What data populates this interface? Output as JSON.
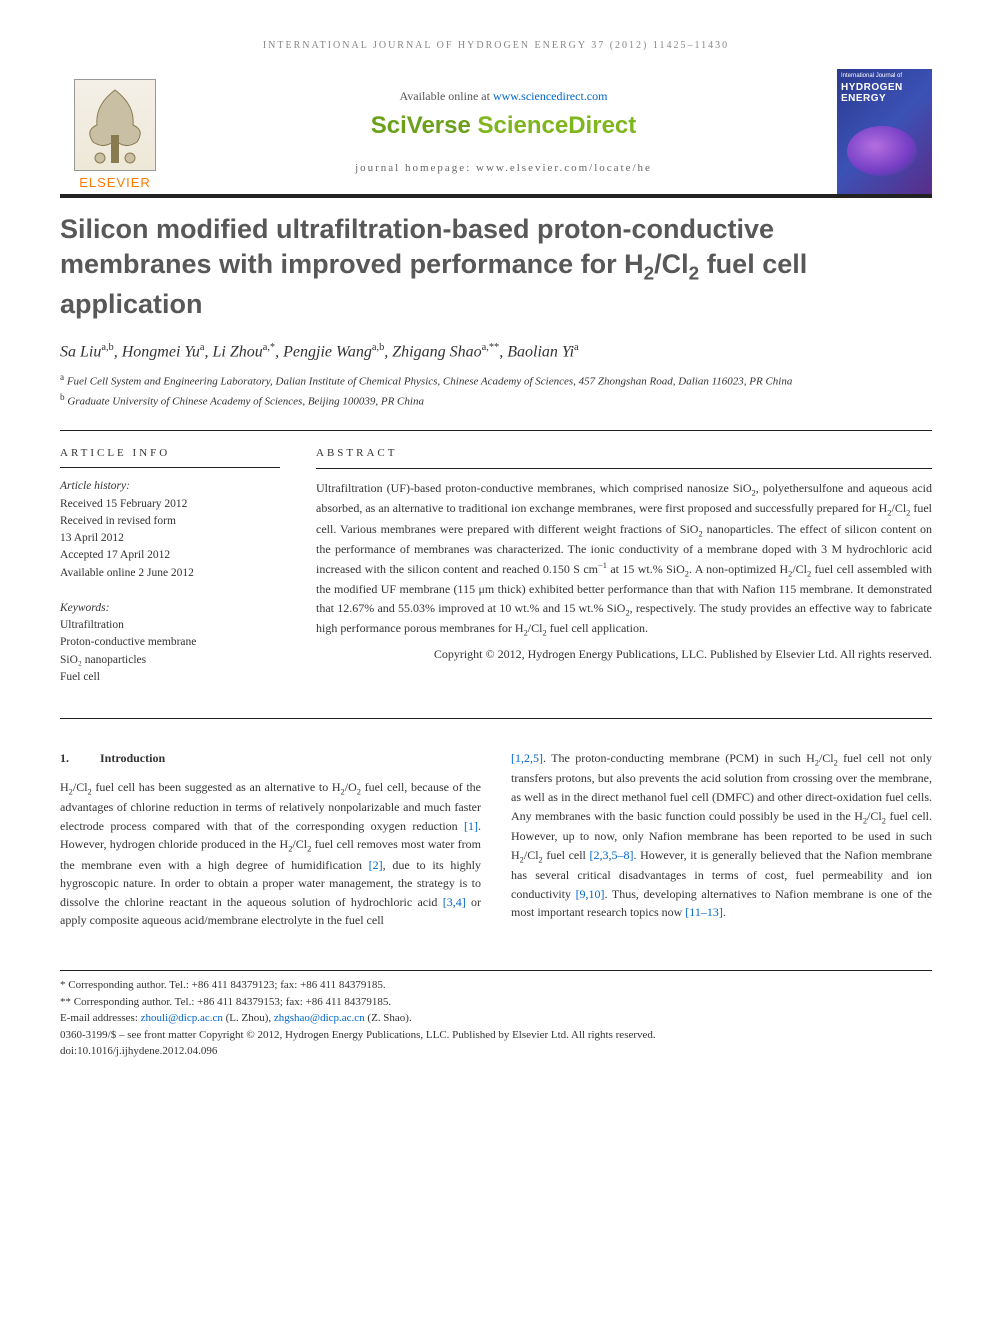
{
  "running_head": "INTERNATIONAL JOURNAL OF HYDROGEN ENERGY 37 (2012) 11425–11430",
  "header": {
    "available_prefix": "Available online at ",
    "available_link": "www.sciencedirect.com",
    "sciverse": "SciVerse ScienceDirect",
    "homepage": "journal homepage: www.elsevier.com/locate/he",
    "elsevier": "ELSEVIER",
    "cover_top": "International Journal of",
    "cover_main": "HYDROGEN ENERGY"
  },
  "title_html": "Silicon modified ultrafiltration-based proton-conductive membranes with improved performance for H<sub>2</sub>/Cl<sub>2</sub> fuel cell application",
  "authors_html": "Sa Liu<sup>a,b</sup>, Hongmei Yu<sup>a</sup>, Li Zhou<sup>a,*</sup>, Pengjie Wang<sup>a,b</sup>, Zhigang Shao<sup>a,**</sup>, Baolian Yi<sup>a</sup>",
  "affiliations": {
    "a": "Fuel Cell System and Engineering Laboratory, Dalian Institute of Chemical Physics, Chinese Academy of Sciences, 457 Zhongshan Road, Dalian 116023, PR China",
    "b": "Graduate University of Chinese Academy of Sciences, Beijing 100039, PR China"
  },
  "info": {
    "head": "ARTICLE INFO",
    "history_label": "Article history:",
    "history_lines": [
      "Received 15 February 2012",
      "Received in revised form",
      "13 April 2012",
      "Accepted 17 April 2012",
      "Available online 2 June 2012"
    ],
    "keywords_label": "Keywords:",
    "keywords": [
      "Ultrafiltration",
      "Proton-conductive membrane",
      "SiO₂ nanoparticles",
      "Fuel cell"
    ]
  },
  "abstract": {
    "head": "ABSTRACT",
    "text_html": "Ultrafiltration (UF)-based proton-conductive membranes, which comprised nanosize SiO<sub>2</sub>, polyethersulfone and aqueous acid absorbed, as an alternative to traditional ion exchange membranes, were first proposed and successfully prepared for H<sub>2</sub>/Cl<sub>2</sub> fuel cell. Various membranes were prepared with different weight fractions of SiO<sub>2</sub> nanoparticles. The effect of silicon content on the performance of membranes was characterized. The ionic conductivity of a membrane doped with 3 M hydrochloric acid increased with the silicon content and reached 0.150 S cm<sup>−1</sup> at 15 wt.% SiO<sub>2</sub>. A non-optimized H<sub>2</sub>/Cl<sub>2</sub> fuel cell assembled with the modified UF membrane (115 μm thick) exhibited better performance than that with Nafion 115 membrane. It demonstrated that 12.67% and 55.03% improved at 10 wt.% and 15 wt.% SiO<sub>2</sub>, respectively. The study provides an effective way to fabricate high performance porous membranes for H<sub>2</sub>/Cl<sub>2</sub> fuel cell application.",
    "copyright": "Copyright © 2012, Hydrogen Energy Publications, LLC. Published by Elsevier Ltd. All rights reserved."
  },
  "section1": {
    "num": "1.",
    "title": "Introduction",
    "col1_html": "H<sub>2</sub>/Cl<sub>2</sub> fuel cell has been suggested as an alternative to H<sub>2</sub>/O<sub>2</sub> fuel cell, because of the advantages of chlorine reduction in terms of relatively nonpolarizable and much faster electrode process compared with that of the corresponding oxygen reduction <a href='#'>[1]</a>. However, hydrogen chloride produced in the H<sub>2</sub>/Cl<sub>2</sub> fuel cell removes most water from the membrane even with a high degree of humidification <a href='#'>[2]</a>, due to its highly hygroscopic nature. In order to obtain a proper water management, the strategy is to dissolve the chlorine reactant in the aqueous solution of hydrochloric acid <a href='#'>[3,4]</a> or apply composite aqueous acid/membrane electrolyte in the fuel cell",
    "col2_html": "<a href='#'>[1,2,5]</a>. The proton-conducting membrane (PCM) in such H<sub>2</sub>/Cl<sub>2</sub> fuel cell not only transfers protons, but also prevents the acid solution from crossing over the membrane, as well as in the direct methanol fuel cell (DMFC) and other direct-oxidation fuel cells. Any membranes with the basic function could possibly be used in the H<sub>2</sub>/Cl<sub>2</sub> fuel cell. However, up to now, only Nafion membrane has been reported to be used in such H<sub>2</sub>/Cl<sub>2</sub> fuel cell <a href='#'>[2,3,5–8]</a>. However, it is generally believed that the Nafion membrane has several critical disadvantages in terms of cost, fuel permeability and ion conductivity <a href='#'>[9,10]</a>. Thus, developing alternatives to Nafion membrane is one of the most important research topics now <a href='#'>[11–13]</a>."
  },
  "footnotes": {
    "corr1": "* Corresponding author. Tel.: +86 411 84379123; fax: +86 411 84379185.",
    "corr2": "** Corresponding author. Tel.: +86 411 84379153; fax: +86 411 84379185.",
    "email_label": "E-mail addresses: ",
    "email1": "zhouli@dicp.ac.cn",
    "email1_who": " (L. Zhou), ",
    "email2": "zhgshao@dicp.ac.cn",
    "email2_who": " (Z. Shao).",
    "issn": "0360-3199/$ – see front matter Copyright © 2012, Hydrogen Energy Publications, LLC. Published by Elsevier Ltd. All rights reserved.",
    "doi": "doi:10.1016/j.ijhydene.2012.04.096"
  }
}
